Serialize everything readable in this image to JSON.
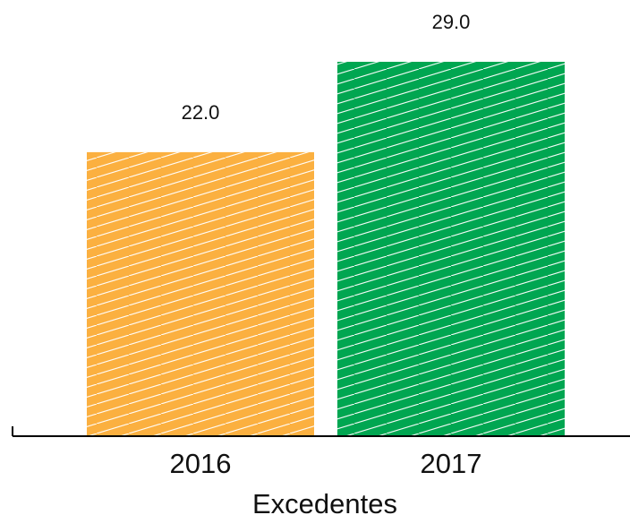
{
  "chart_data": {
    "type": "bar",
    "categories": [
      "2016",
      "2017"
    ],
    "values": [
      22.0,
      29.0
    ],
    "value_labels": [
      "22.0",
      "29.0"
    ],
    "title": "",
    "xlabel": "Excedentes",
    "ylabel": "",
    "ylim": [
      0,
      29.0
    ],
    "grid": false,
    "legend": "none",
    "colors": [
      "#FBB040",
      "#00A651"
    ],
    "pattern": "diagonal-white-hatch"
  }
}
